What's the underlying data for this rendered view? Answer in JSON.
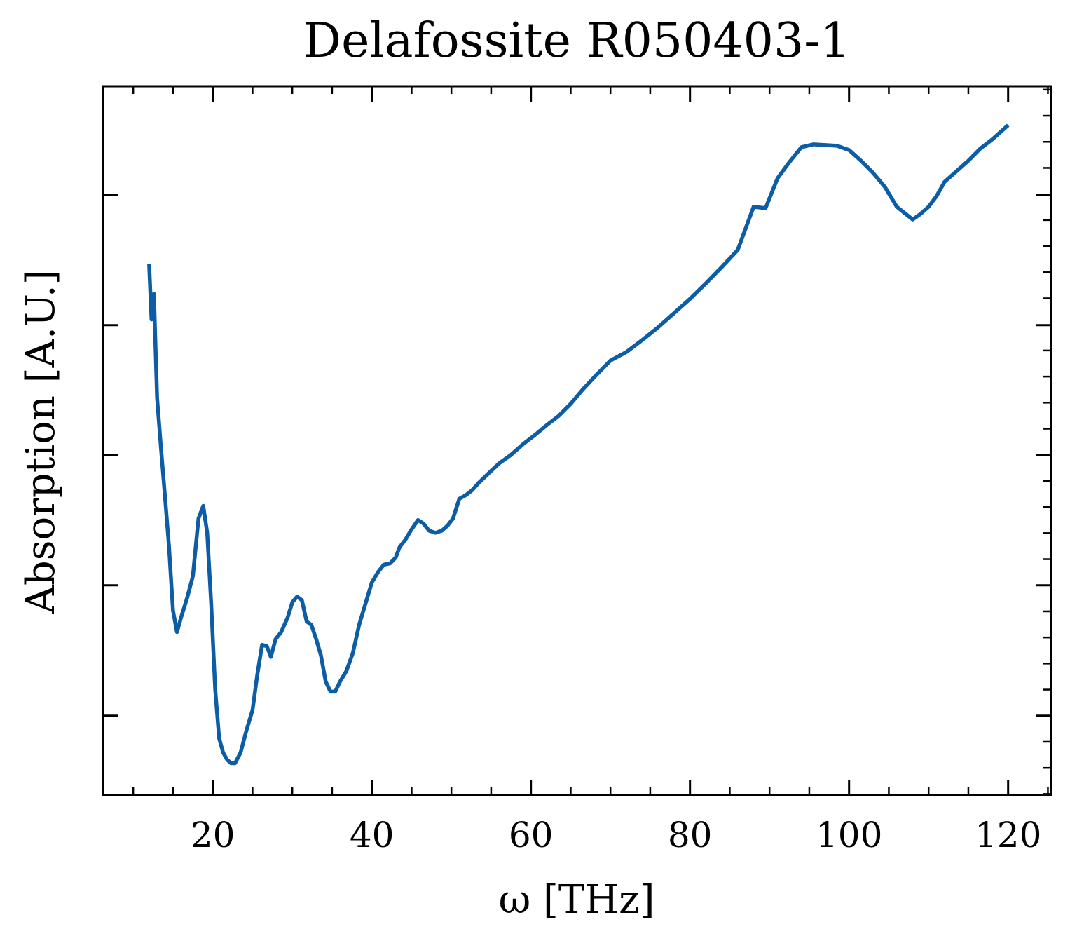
{
  "chart_data": {
    "type": "line",
    "title": "Delafossite R050403-1",
    "xlabel": "ω [THz]",
    "ylabel": "Absorption [A.U.]",
    "xlim": [
      6.2,
      125.4
    ],
    "ylim": [
      0,
      1
    ],
    "x_ticks": [
      20,
      40,
      60,
      80,
      100,
      120
    ],
    "x_minor_step": 5,
    "y_tick_fracs": [
      0.112,
      0.296,
      0.48,
      0.663,
      0.847
    ],
    "y_tick_labels_shown": false,
    "grid": false,
    "legend": "none",
    "colors": {
      "series": "#0c5da5",
      "axes": "#000000"
    },
    "series": [
      {
        "color": "#0c5da5",
        "x": [
          12.0,
          12.3,
          12.6,
          13.0,
          13.5,
          14.0,
          14.5,
          15.0,
          15.5,
          16.0,
          16.8,
          17.5,
          18.2,
          18.8,
          19.3,
          19.8,
          20.3,
          20.8,
          21.3,
          21.8,
          22.3,
          22.8,
          23.5,
          24.2,
          25.0,
          25.6,
          26.2,
          26.8,
          27.3,
          27.9,
          28.6,
          29.4,
          30.0,
          30.6,
          31.2,
          31.8,
          32.4,
          33.0,
          33.6,
          34.2,
          34.8,
          35.4,
          36.0,
          36.8,
          37.6,
          38.4,
          39.2,
          40.0,
          40.8,
          41.5,
          42.3,
          43.0,
          43.5,
          44.2,
          45.0,
          45.8,
          46.5,
          47.2,
          48.0,
          48.8,
          49.5,
          50.2,
          51.0,
          51.8,
          52.6,
          53.4,
          54.5,
          56.0,
          57.5,
          59.0,
          60.5,
          62.0,
          63.5,
          65.0,
          66.5,
          68.0,
          70.0,
          72.0,
          74.0,
          76.0,
          78.0,
          80.0,
          82.0,
          84.0,
          86.0,
          88.0,
          89.5,
          91.0,
          92.5,
          94.0,
          95.5,
          97.0,
          98.5,
          100.0,
          101.5,
          103.0,
          104.5,
          106.0,
          107.0,
          108.0,
          109.0,
          110.0,
          111.0,
          112.0,
          113.5,
          115.0,
          116.5,
          118.0,
          119.0,
          120.0
        ],
        "y": [
          0.749,
          0.671,
          0.707,
          0.56,
          0.488,
          0.42,
          0.35,
          0.26,
          0.23,
          0.25,
          0.279,
          0.309,
          0.39,
          0.408,
          0.37,
          0.27,
          0.15,
          0.08,
          0.06,
          0.05,
          0.045,
          0.045,
          0.06,
          0.09,
          0.12,
          0.17,
          0.212,
          0.21,
          0.195,
          0.22,
          0.23,
          0.25,
          0.272,
          0.28,
          0.275,
          0.245,
          0.24,
          0.22,
          0.197,
          0.16,
          0.146,
          0.146,
          0.16,
          0.175,
          0.2,
          0.24,
          0.27,
          0.3,
          0.315,
          0.325,
          0.327,
          0.335,
          0.35,
          0.36,
          0.375,
          0.388,
          0.383,
          0.373,
          0.37,
          0.373,
          0.38,
          0.39,
          0.418,
          0.423,
          0.43,
          0.44,
          0.452,
          0.468,
          0.48,
          0.495,
          0.508,
          0.522,
          0.535,
          0.552,
          0.572,
          0.59,
          0.613,
          0.625,
          0.642,
          0.66,
          0.68,
          0.7,
          0.722,
          0.745,
          0.769,
          0.83,
          0.828,
          0.87,
          0.893,
          0.914,
          0.918,
          0.917,
          0.916,
          0.91,
          0.895,
          0.878,
          0.858,
          0.83,
          0.821,
          0.812,
          0.82,
          0.83,
          0.845,
          0.865,
          0.88,
          0.895,
          0.912,
          0.925,
          0.935,
          0.945
        ]
      }
    ]
  }
}
